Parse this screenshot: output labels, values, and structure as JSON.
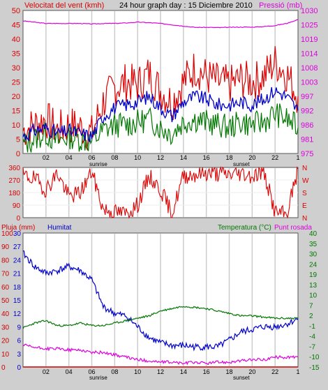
{
  "header": {
    "left_label": "Velocitat del vent (kmh)",
    "center_title": "24 hour graph day : 15 Diciembre 2010",
    "right_label": "Pressió (mb)"
  },
  "bottom_header": {
    "left_label": "Pluja (mm)",
    "mid_label": "Humitat",
    "right_label_1": "Temperatura (°C)",
    "right_label_2": "Punt rosada"
  },
  "markers": {
    "sunrise": "sunrise",
    "sunset": "sunset"
  },
  "colors": {
    "frame_bg": "#cfcfcf",
    "plot_bg": "#ffffff",
    "vgrid": "#cccccc",
    "wind": "#dd0000",
    "wind_avg": "#0000cc",
    "gust": "#007700",
    "pressure": "#dd00dd",
    "direction": "#dd0000",
    "humidity": "#0000cc",
    "temperature": "#007700",
    "dewpoint": "#dd00dd",
    "rain": "#cc0000"
  },
  "chart_data": [
    {
      "type": "line",
      "name": "wind-pressure",
      "x_ticks": [
        "02",
        "04",
        "06",
        "08",
        "10",
        "12",
        "14",
        "16",
        "18",
        "20",
        "22",
        "1"
      ],
      "y_left_ticks": [
        "0",
        "5",
        "10",
        "15",
        "20",
        "25",
        "30",
        "35",
        "40",
        "45",
        "50"
      ],
      "y_right_ticks": [
        "975",
        "981",
        "986",
        "992",
        "997",
        "1003",
        "1008",
        "1014",
        "1019",
        "1025",
        "1030"
      ],
      "ylim_left": [
        0,
        50
      ],
      "ylim_right": [
        975,
        1030
      ],
      "x": [
        0,
        1,
        2,
        3,
        4,
        5,
        6,
        7,
        8,
        9,
        10,
        11,
        12,
        13,
        14,
        15,
        16,
        17,
        18,
        19,
        20,
        21,
        22,
        23,
        24
      ],
      "series": [
        {
          "key": "wind",
          "values": [
            8,
            10,
            12,
            8,
            10,
            9,
            7,
            18,
            23,
            25,
            24,
            28,
            22,
            18,
            25,
            30,
            27,
            25,
            24,
            26,
            25,
            27,
            32,
            28,
            20
          ]
        },
        {
          "key": "wind_avg",
          "values": [
            6,
            8,
            9,
            7,
            8,
            7,
            6,
            13,
            16,
            17,
            18,
            20,
            16,
            13,
            18,
            20,
            19,
            17,
            17,
            18,
            17,
            19,
            22,
            20,
            15
          ]
        },
        {
          "key": "gust",
          "values": [
            3,
            5,
            7,
            4,
            6,
            5,
            4,
            8,
            10,
            10,
            11,
            12,
            9,
            7,
            11,
            12,
            11,
            10,
            9,
            11,
            10,
            11,
            14,
            12,
            9
          ]
        },
        {
          "key": "pressure",
          "values": [
            1026,
            1025.5,
            1025,
            1025,
            1025,
            1025,
            1024.8,
            1025,
            1025,
            1025.2,
            1025.5,
            1025.3,
            1025,
            1024.5,
            1024,
            1023.5,
            1023.5,
            1023.4,
            1023.5,
            1023.6,
            1023.6,
            1023.8,
            1024.2,
            1025,
            1026.5
          ]
        }
      ]
    },
    {
      "type": "scatter",
      "name": "wind-direction",
      "y_left_ticks": [
        "360",
        "270",
        "180",
        "90",
        "0"
      ],
      "y_right_ticks": [
        "N",
        "W",
        "S",
        "E",
        "N"
      ],
      "ylim": [
        0,
        360
      ],
      "x": [
        0,
        1,
        2,
        3,
        4,
        5,
        6,
        7,
        8,
        9,
        10,
        11,
        12,
        13,
        14,
        15,
        16,
        17,
        18,
        19,
        20,
        21,
        22,
        23,
        24
      ],
      "values": [
        300,
        280,
        200,
        320,
        150,
        180,
        330,
        60,
        40,
        30,
        90,
        300,
        200,
        30,
        300,
        310,
        320,
        315,
        310,
        320,
        300,
        330,
        40,
        20,
        350
      ]
    },
    {
      "type": "line",
      "name": "humidity-temperature",
      "x_ticks": [
        "02",
        "04",
        "06",
        "08",
        "10",
        "12",
        "14",
        "16",
        "18",
        "20",
        "22",
        "1"
      ],
      "y_left_ticks_outer": [
        "0",
        "10",
        "20",
        "30",
        "40",
        "50",
        "60",
        "70",
        "80",
        "90",
        "100"
      ],
      "y_left_ticks_inner": [
        "0",
        "3",
        "6",
        "9",
        "12",
        "15",
        "18",
        "21",
        "24",
        "27",
        "30"
      ],
      "y_right_ticks": [
        "-15",
        "-10",
        "-7",
        "-4",
        "-1",
        "2",
        "7",
        "10",
        "13",
        "19",
        "24",
        "30",
        "35",
        "40"
      ],
      "ylim_humidity": [
        0,
        100
      ],
      "ylim_temperature": [
        -15,
        40
      ],
      "x": [
        0,
        1,
        2,
        3,
        4,
        5,
        6,
        7,
        8,
        9,
        10,
        11,
        12,
        13,
        14,
        15,
        16,
        17,
        18,
        19,
        20,
        21,
        22,
        23,
        24
      ],
      "series": [
        {
          "key": "humidity",
          "values": [
            85,
            75,
            70,
            72,
            75,
            72,
            65,
            45,
            40,
            38,
            30,
            22,
            18,
            16,
            16,
            15,
            15,
            15,
            20,
            26,
            28,
            30,
            30,
            32,
            36
          ]
        },
        {
          "key": "temperature",
          "values": [
            1,
            3,
            4,
            2,
            2,
            3,
            2,
            2,
            3,
            4,
            5,
            6,
            8,
            9,
            10,
            9.5,
            9,
            8,
            7,
            6,
            6,
            5.5,
            5,
            5,
            5
          ]
        },
        {
          "key": "dewpoint",
          "values": [
            -6,
            -7,
            -7.5,
            -7.5,
            -8,
            -8,
            -9,
            -9,
            -10,
            -11,
            -12,
            -12.5,
            -13,
            -13,
            -13.5,
            -13,
            -13.5,
            -13,
            -13,
            -12.5,
            -12,
            -12,
            -11,
            -11,
            -11
          ]
        },
        {
          "key": "rain",
          "values": [
            0,
            0,
            0,
            0,
            0,
            0,
            0,
            0,
            0,
            0,
            0,
            0,
            0,
            0,
            0,
            0,
            0,
            0,
            0,
            0,
            0,
            0,
            0,
            0,
            0
          ]
        }
      ]
    }
  ]
}
